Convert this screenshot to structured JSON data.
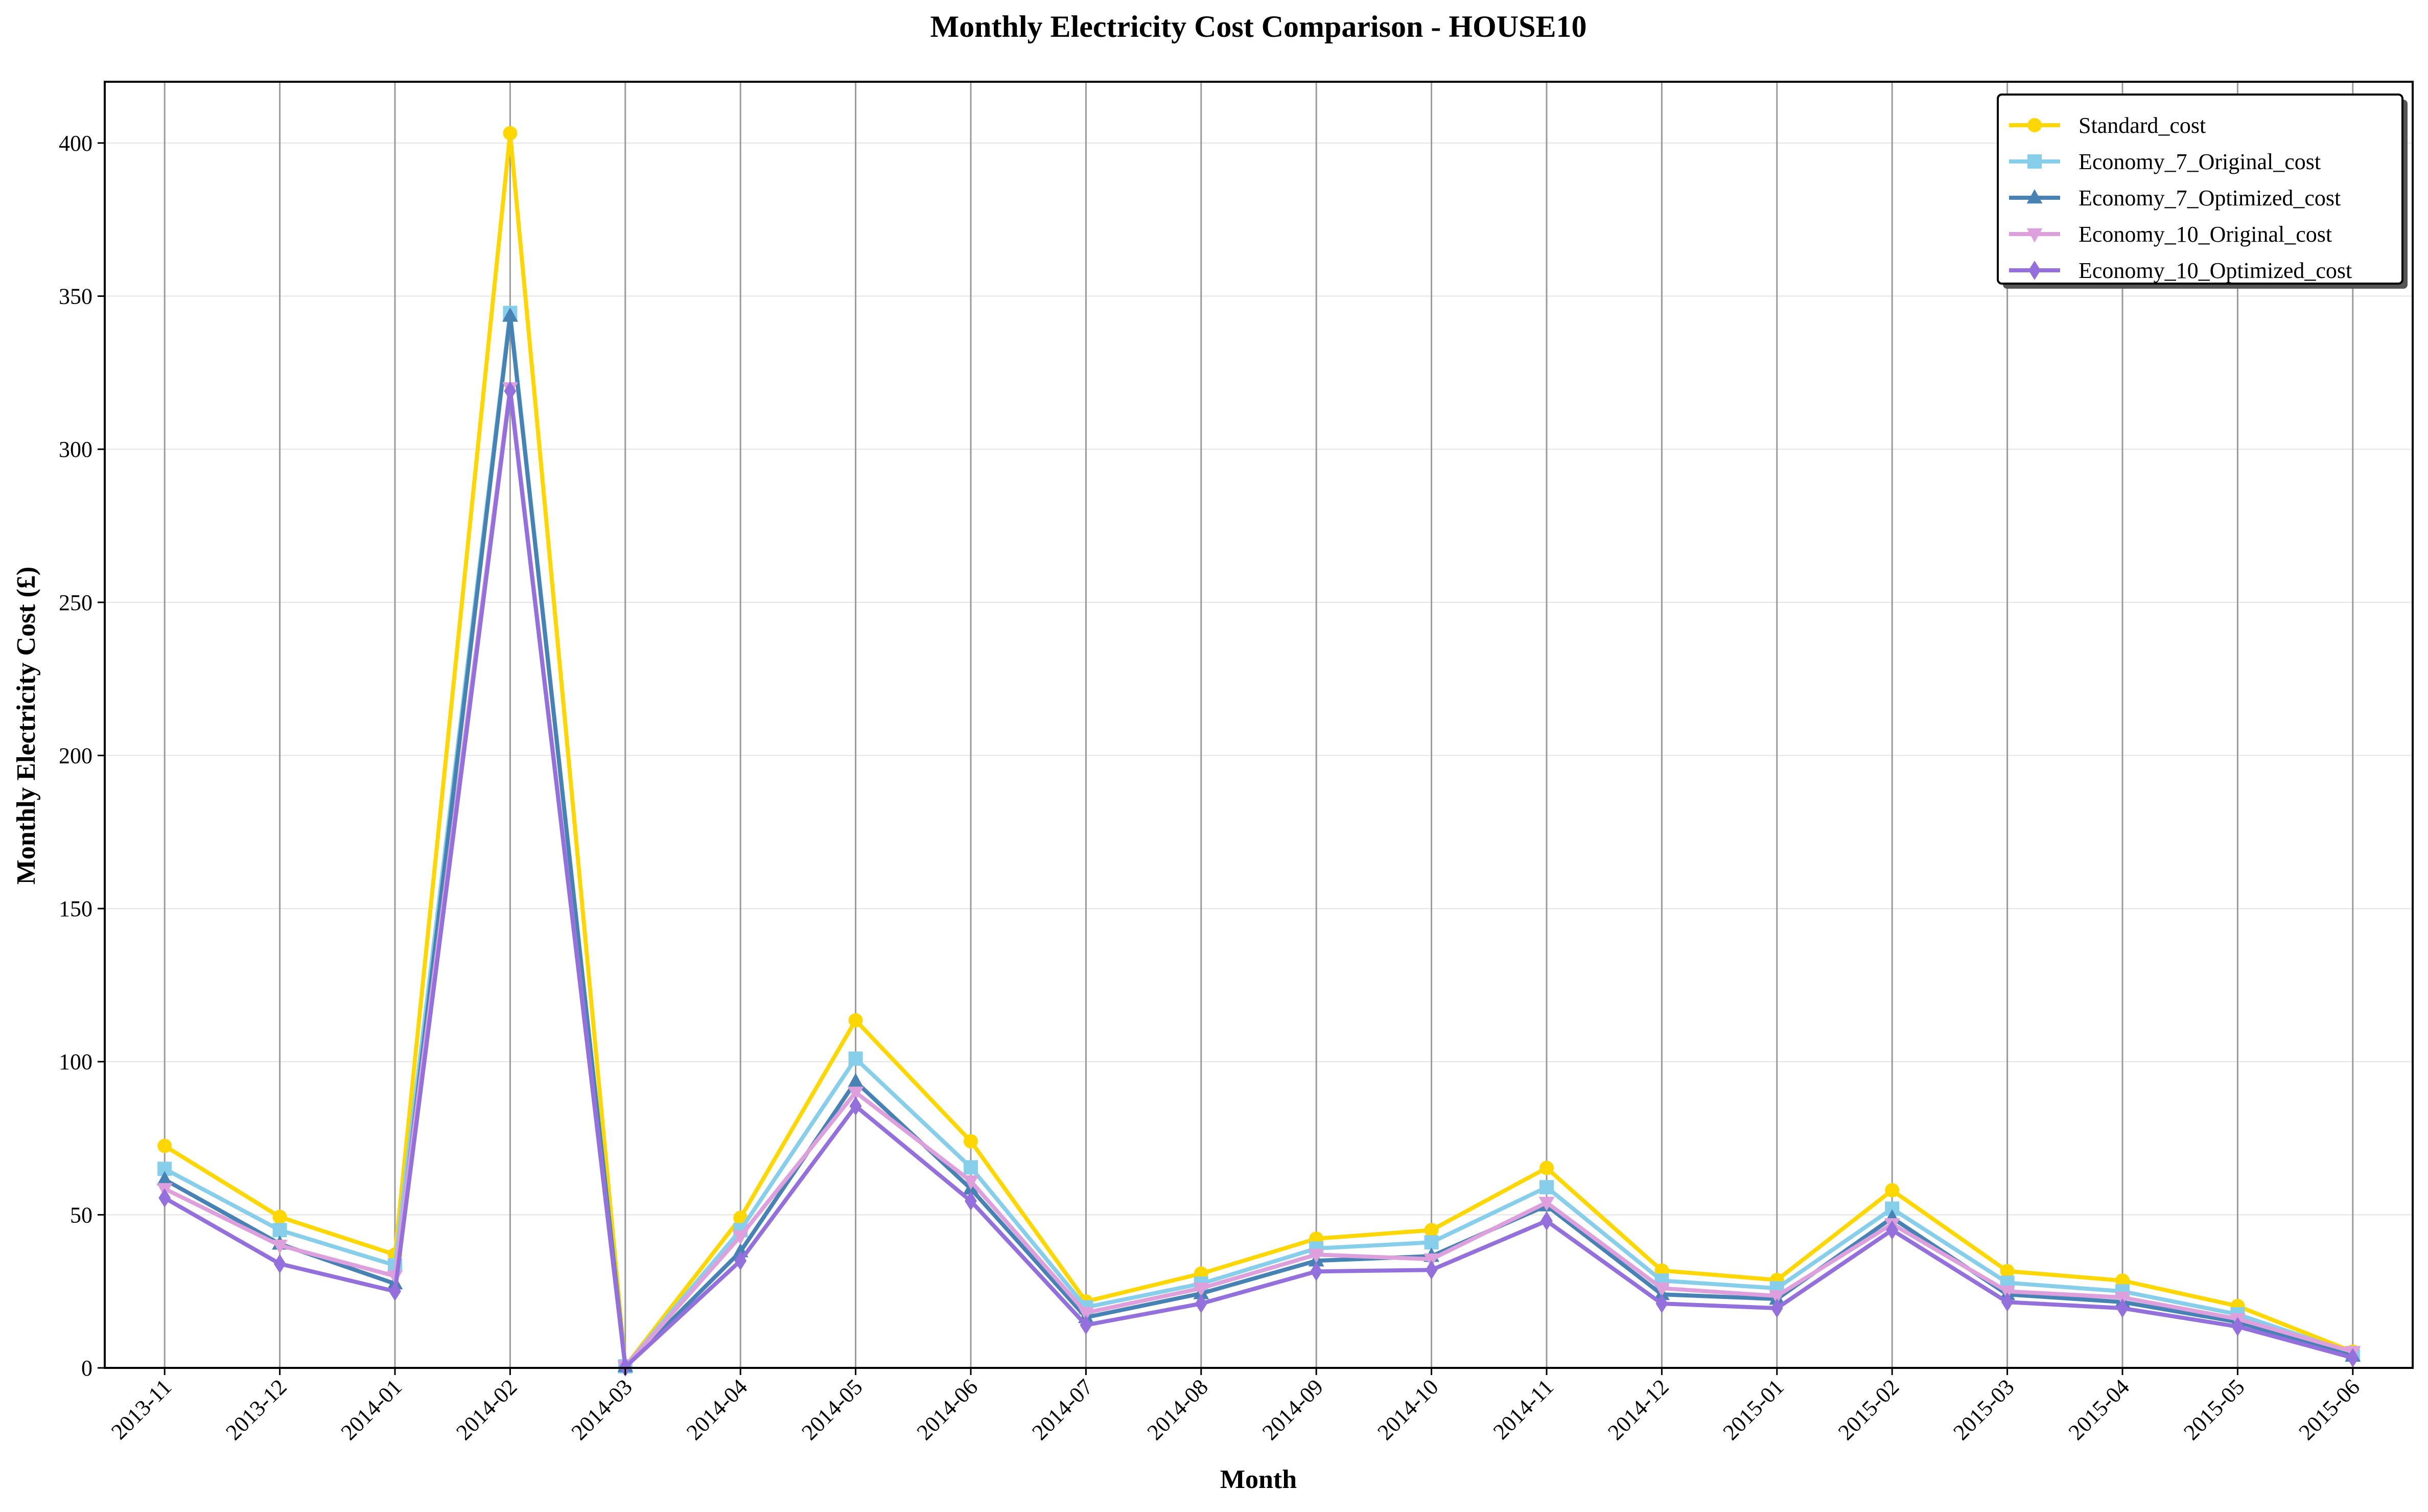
{
  "chart_data": {
    "type": "line",
    "title": "Monthly Electricity Cost Comparison - HOUSE10",
    "xlabel": "Month",
    "ylabel": "Monthly Electricity Cost (£)",
    "ylim": [
      0,
      420
    ],
    "yticks": [
      0,
      50,
      100,
      150,
      200,
      250,
      300,
      350,
      400
    ],
    "grid": "vertical lines at each month, light horizontal lines",
    "legend_position": "top-right",
    "categories": [
      "2013-11",
      "2013-12",
      "2014-01",
      "2014-02",
      "2014-03",
      "2014-04",
      "2014-05",
      "2014-06",
      "2014-07",
      "2014-08",
      "2014-09",
      "2014-10",
      "2014-11",
      "2014-12",
      "2015-01",
      "2015-02",
      "2015-03",
      "2015-04",
      "2015-05",
      "2015-06"
    ],
    "series": [
      {
        "name": "Standard_cost",
        "color": "#FFD700",
        "marker": "circle",
        "values": [
          72.5,
          49.3,
          37.0,
          403.2,
          0.5,
          49.0,
          113.5,
          74.0,
          21.7,
          30.8,
          42.2,
          45.0,
          65.3,
          31.8,
          28.7,
          58.0,
          31.6,
          28.5,
          20.2,
          5.3
        ]
      },
      {
        "name": "Economy_7_Original_cost",
        "color": "#87CEEB",
        "marker": "square",
        "values": [
          65.0,
          45.0,
          33.5,
          344.5,
          0.5,
          45.0,
          101.0,
          65.5,
          19.8,
          27.5,
          39.0,
          41.0,
          59.0,
          28.5,
          26.0,
          52.0,
          27.8,
          25.0,
          17.5,
          4.8
        ]
      },
      {
        "name": "Economy_7_Optimized_cost",
        "color": "#4682B4",
        "marker": "triangle-up",
        "values": [
          61.5,
          40.5,
          27.5,
          343.5,
          0.5,
          38.0,
          93.5,
          58.5,
          16.5,
          24.3,
          35.0,
          36.5,
          53.0,
          24.0,
          22.5,
          49.0,
          24.0,
          21.5,
          15.0,
          3.9
        ]
      },
      {
        "name": "Economy_10_Original_cost",
        "color": "#DDA0DD",
        "marker": "triangle-down",
        "values": [
          58.5,
          40.0,
          30.0,
          320.0,
          0.5,
          43.0,
          90.0,
          61.0,
          18.0,
          26.0,
          37.0,
          35.5,
          54.0,
          26.0,
          23.5,
          47.0,
          25.0,
          23.0,
          16.0,
          5.3
        ]
      },
      {
        "name": "Economy_10_Optimized_cost",
        "color": "#9370DB",
        "marker": "diamond",
        "values": [
          55.5,
          34.0,
          25.0,
          319.0,
          0.3,
          35.0,
          85.5,
          54.5,
          14.0,
          21.0,
          31.5,
          32.0,
          48.0,
          21.0,
          19.5,
          45.0,
          21.5,
          19.5,
          13.5,
          3.3
        ]
      }
    ]
  }
}
